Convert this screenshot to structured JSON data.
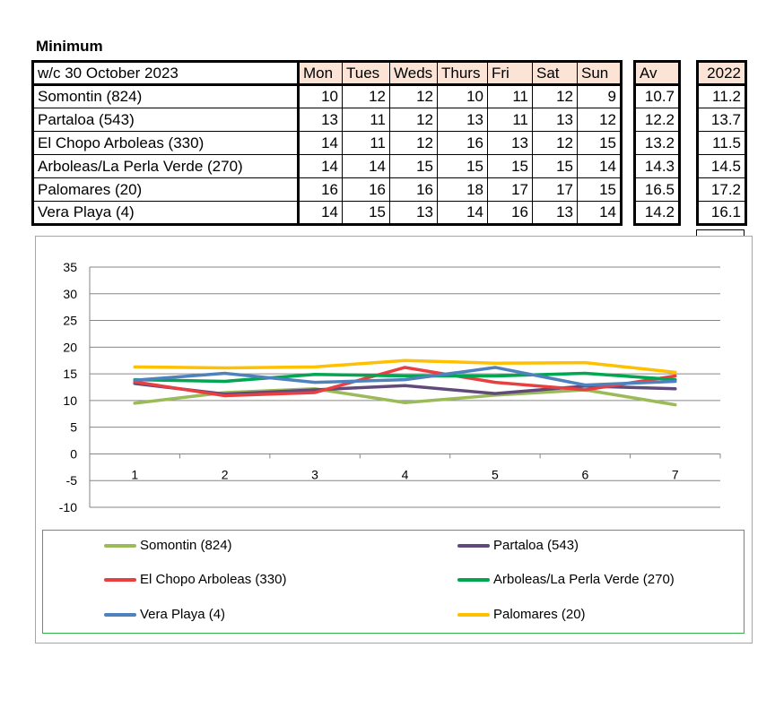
{
  "heading": "Minimum",
  "table": {
    "week_label": "w/c 30 October 2023",
    "days": [
      "Mon",
      "Tues",
      "Weds",
      "Thurs",
      "Fri",
      "Sat",
      "Sun"
    ],
    "av_header": "Av",
    "year_header": "2022",
    "rows": [
      {
        "location": "Somontin (824)",
        "values": [
          "10",
          "12",
          "12",
          "10",
          "11",
          "12",
          "9"
        ],
        "av": "10.7",
        "prev": "11.2"
      },
      {
        "location": "Partaloa (543)",
        "values": [
          "13",
          "11",
          "12",
          "13",
          "11",
          "13",
          "12"
        ],
        "av": "12.2",
        "prev": "13.7"
      },
      {
        "location": "El Chopo Arboleas (330)",
        "values": [
          "14",
          "11",
          "12",
          "16",
          "13",
          "12",
          "15"
        ],
        "av": "13.2",
        "prev": "11.5"
      },
      {
        "location": "Arboleas/La Perla Verde (270)",
        "values": [
          "14",
          "14",
          "15",
          "15",
          "15",
          "15",
          "14"
        ],
        "av": "14.3",
        "prev": "14.5"
      },
      {
        "location": "Palomares (20)",
        "values": [
          "16",
          "16",
          "16",
          "18",
          "17",
          "17",
          "15"
        ],
        "av": "16.5",
        "prev": "17.2"
      },
      {
        "location": "Vera Playa (4)",
        "values": [
          "14",
          "15",
          "13",
          "14",
          "16",
          "13",
          "14"
        ],
        "av": "14.2",
        "prev": "16.1"
      }
    ]
  },
  "chart_data": {
    "type": "line",
    "x": [
      1,
      2,
      3,
      4,
      5,
      6,
      7
    ],
    "x_tick_labels": [
      "1",
      "2",
      "3",
      "4",
      "5",
      "6",
      "7"
    ],
    "ylim": [
      -10,
      35
    ],
    "y_ticks": [
      -10,
      -5,
      0,
      5,
      10,
      15,
      20,
      25,
      30,
      35
    ],
    "y_tick_labels": [
      "-10",
      "-5",
      "0",
      "5",
      "10",
      "15",
      "20",
      "25",
      "30",
      "35"
    ],
    "grid": "horizontal",
    "legend_position": "bottom",
    "series": [
      {
        "name": "Somontin (824)",
        "color": "#9bbb59",
        "values": [
          9.5,
          11.5,
          12.2,
          9.6,
          11.0,
          12.0,
          9.2
        ]
      },
      {
        "name": "Partaloa (543)",
        "color": "#604a7b",
        "values": [
          13.2,
          11.2,
          12.0,
          12.8,
          11.3,
          12.7,
          12.2
        ]
      },
      {
        "name": "El Chopo Arboleas (330)",
        "color": "#e84040",
        "values": [
          13.5,
          10.9,
          11.5,
          16.2,
          13.4,
          12.0,
          14.6
        ]
      },
      {
        "name": "Arboleas/La Perla Verde (270)",
        "color": "#00a651",
        "values": [
          13.9,
          13.6,
          14.9,
          14.6,
          14.6,
          15.1,
          13.9
        ]
      },
      {
        "name": "Vera Playa (4)",
        "color": "#4f81bd",
        "values": [
          13.8,
          15.1,
          13.4,
          13.9,
          16.2,
          12.9,
          13.6
        ]
      },
      {
        "name": "Palomares (20)",
        "color": "#ffc000",
        "values": [
          16.3,
          16.1,
          16.3,
          17.5,
          17.0,
          17.1,
          15.3
        ]
      }
    ],
    "legend_order": [
      "Somontin (824)",
      "Partaloa (543)",
      "El Chopo Arboleas (330)",
      "Arboleas/La Perla Verde (270)",
      "Vera Playa (4)",
      "Palomares (20)"
    ]
  }
}
